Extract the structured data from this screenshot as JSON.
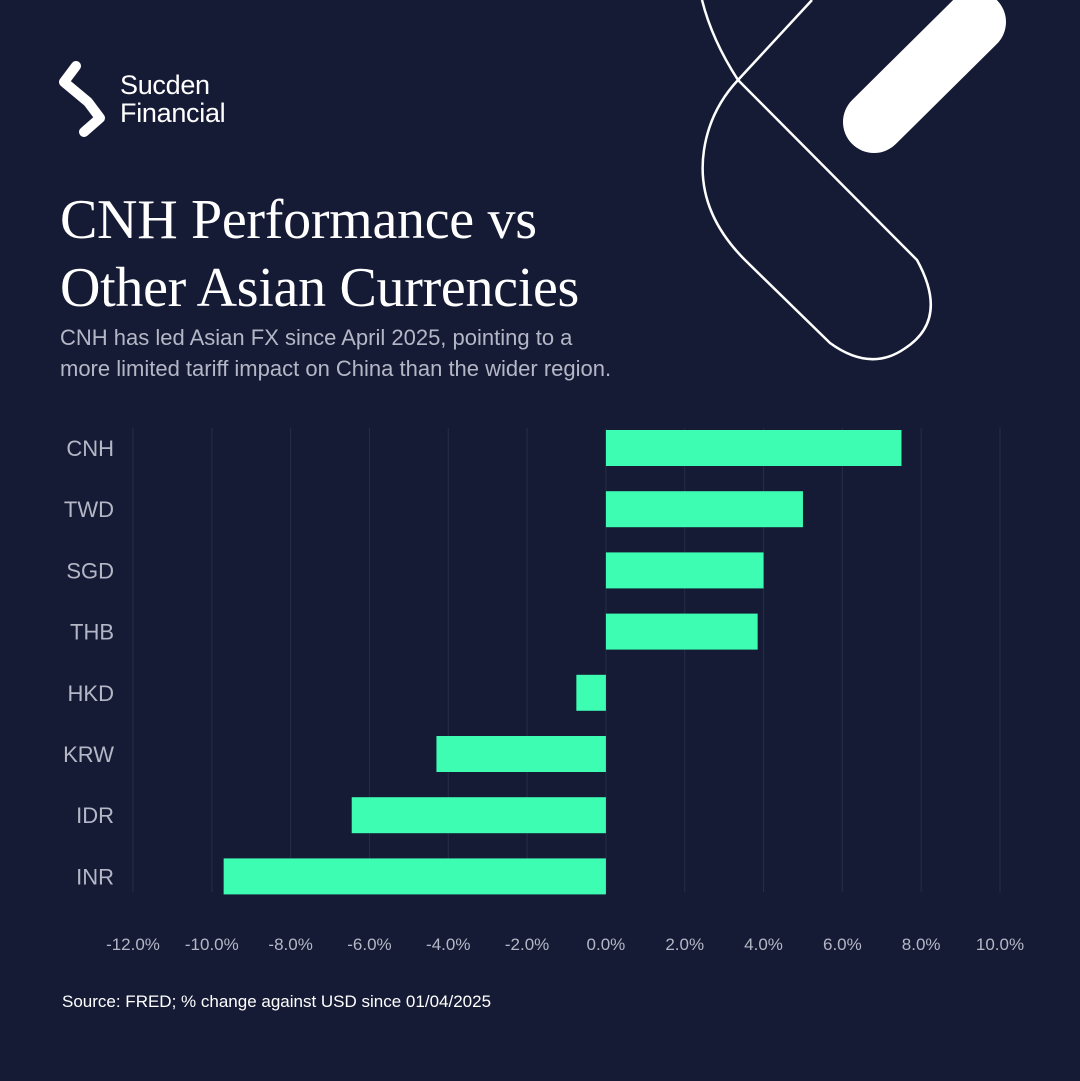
{
  "brand": {
    "line1": "Sucden",
    "line2": "Financial"
  },
  "heading": {
    "line1": "CNH Performance vs",
    "line2": "Other Asian Currencies"
  },
  "subheading": {
    "line1": "CNH has led Asian FX since April 2025, pointing to a",
    "line2": "more limited tariff impact on China than the wider region."
  },
  "colors": {
    "background": "#161b35",
    "bar": "#3dfdb3",
    "text": "#ffffff",
    "muted_text": "#b4b7c6",
    "grid": "#262c49"
  },
  "chart_data": {
    "type": "bar",
    "orientation": "horizontal",
    "categories": [
      "CNH",
      "TWD",
      "SGD",
      "THB",
      "HKD",
      "KRW",
      "IDR",
      "INR"
    ],
    "values": [
      7.5,
      5.0,
      4.0,
      3.85,
      -0.75,
      -4.3,
      -6.45,
      -9.7
    ],
    "xlim": [
      -12,
      10
    ],
    "xticks": [
      -12,
      -10,
      -8,
      -6,
      -4,
      -2,
      0,
      2,
      4,
      6,
      8,
      10
    ],
    "xtick_labels": [
      "-12.0%",
      "-10.0%",
      "-8.0%",
      "-6.0%",
      "-4.0%",
      "-2.0%",
      "0.0%",
      "2.0%",
      "4.0%",
      "6.0%",
      "8.0%",
      "10.0%"
    ],
    "grid": true,
    "title": "",
    "xlabel": "",
    "ylabel": ""
  },
  "footer": {
    "source": "Source: FRED; % change against USD since 01/04/2025"
  }
}
